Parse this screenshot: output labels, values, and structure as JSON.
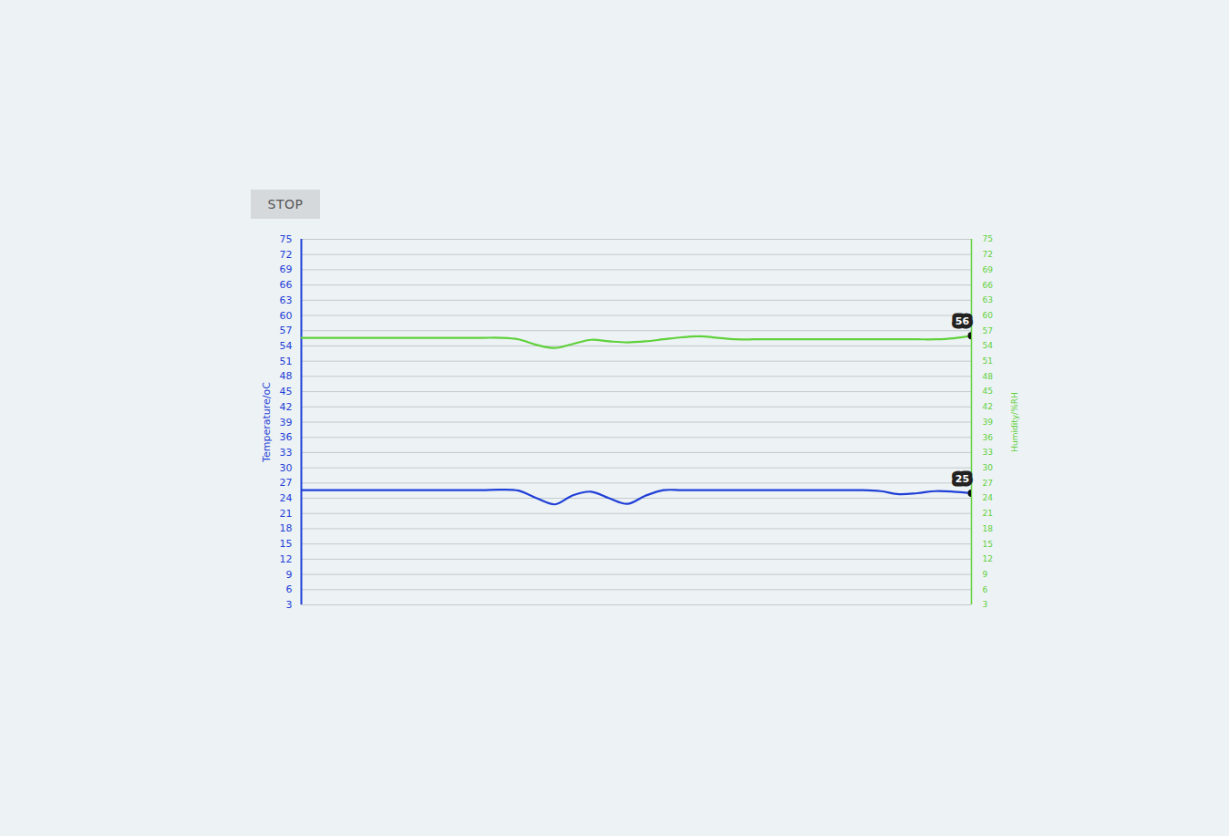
{
  "controls": {
    "button": "STOP"
  },
  "chart_data": {
    "type": "line",
    "y_label": "Temperature/oC",
    "y2_label": "Humidity/%RH",
    "xlim": [
      0,
      37
    ],
    "ylim": [
      3,
      75
    ],
    "yticks": [
      3,
      6,
      9,
      12,
      15,
      18,
      21,
      24,
      27,
      30,
      33,
      36,
      39,
      42,
      45,
      48,
      51,
      54,
      57,
      60,
      63,
      66,
      69,
      72,
      75
    ],
    "y2lim": [
      3,
      75
    ],
    "y2ticks": [
      3,
      6,
      9,
      12,
      15,
      18,
      21,
      24,
      27,
      30,
      33,
      36,
      39,
      42,
      45,
      48,
      51,
      54,
      57,
      60,
      63,
      66,
      69,
      72,
      75
    ],
    "grid": true,
    "tick_labels": "y",
    "series": [
      {
        "name": "Temperature/oC",
        "color": "#1f3fd6",
        "values": [
          25.6,
          25.6,
          25.6,
          25.6,
          25.6,
          25.6,
          25.6,
          25.6,
          25.6,
          25.6,
          25.6,
          25.7,
          25.5,
          24.0,
          22.8,
          24.6,
          25.3,
          24.0,
          22.9,
          24.5,
          25.6,
          25.6,
          25.6,
          25.6,
          25.6,
          25.6,
          25.6,
          25.6,
          25.6,
          25.6,
          25.6,
          25.6,
          25.4,
          24.8,
          25.0,
          25.4,
          25.3,
          25
        ]
      },
      {
        "name": "Humidity/%RH",
        "color": "#5fd13a",
        "axis": "y2",
        "values": [
          55.6,
          55.6,
          55.6,
          55.6,
          55.6,
          55.6,
          55.6,
          55.6,
          55.6,
          55.6,
          55.6,
          55.6,
          55.3,
          54.2,
          53.6,
          54.4,
          55.2,
          54.9,
          54.7,
          54.9,
          55.3,
          55.7,
          55.9,
          55.6,
          55.3,
          55.3,
          55.3,
          55.3,
          55.3,
          55.3,
          55.3,
          55.3,
          55.3,
          55.3,
          55.3,
          55.3,
          55.5,
          56
        ]
      }
    ],
    "annotations": [
      {
        "text": "56",
        "x": 37,
        "y": 56,
        "axis": "y2"
      },
      {
        "text": "25",
        "x": 37,
        "y": 25
      }
    ]
  }
}
